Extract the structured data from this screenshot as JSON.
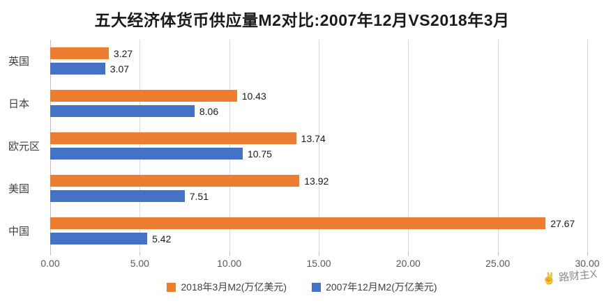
{
  "title": "五大经济体货币供应量M2对比:2007年12月VS2018年3月",
  "watermark": {
    "icon": "✌",
    "text": "路财主X"
  },
  "chart_data": {
    "type": "bar",
    "orientation": "horizontal",
    "title": "五大经济体货币供应量M2对比:2007年12月VS2018年3月",
    "categories": [
      "英国",
      "日本",
      "欧元区",
      "美国",
      "中国"
    ],
    "series": [
      {
        "name": "2018年3月M2(万亿美元)",
        "color": "#ED7D31",
        "values": [
          3.27,
          10.43,
          13.74,
          13.92,
          27.67
        ]
      },
      {
        "name": "2007年12月M2(万亿美元)",
        "color": "#4472C4",
        "values": [
          3.07,
          8.06,
          10.75,
          7.51,
          5.42
        ]
      }
    ],
    "xlim": [
      0,
      30
    ],
    "xticks": [
      "0.00",
      "5.00",
      "10.00",
      "15.00",
      "20.00",
      "25.00",
      "30.00"
    ],
    "grid": true,
    "legend_position": "bottom",
    "value_label_decimals": 2
  }
}
